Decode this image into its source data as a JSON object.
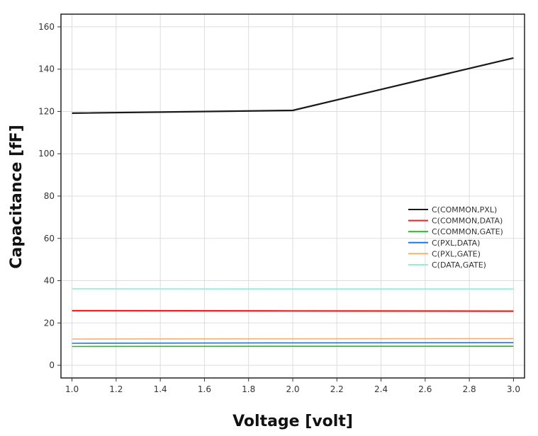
{
  "chart_data": {
    "type": "line",
    "title": "",
    "xlabel": "Voltage [volt]",
    "ylabel": "Capacitance [fF]",
    "xlim": [
      0.95,
      3.05
    ],
    "ylim": [
      -6,
      166
    ],
    "x_ticks": [
      1.0,
      1.2,
      1.4,
      1.6,
      1.8,
      2.0,
      2.2,
      2.4,
      2.6,
      2.8,
      3.0
    ],
    "x_tick_labels": [
      "1.0",
      "1.2",
      "1.4",
      "1.6",
      "1.8",
      "2.0",
      "2.2",
      "2.4",
      "2.6",
      "2.8",
      "3.0"
    ],
    "y_ticks": [
      0,
      20,
      40,
      60,
      80,
      100,
      120,
      140,
      160
    ],
    "y_tick_labels": [
      "0",
      "20",
      "40",
      "60",
      "80",
      "100",
      "120",
      "140",
      "160"
    ],
    "grid": true,
    "legend_position": "right",
    "x": [
      1.0,
      2.0,
      3.0
    ],
    "series": [
      {
        "name": "C(COMMON,PXL)",
        "color": "#1a1a1a",
        "values": [
          119.2,
          120.5,
          145.3
        ]
      },
      {
        "name": "C(COMMON,DATA)",
        "color": "#ee2222",
        "values": [
          25.8,
          25.7,
          25.6
        ]
      },
      {
        "name": "C(COMMON,GATE)",
        "color": "#22bb22",
        "values": [
          8.9,
          9.0,
          9.0
        ]
      },
      {
        "name": "C(PXL,DATA)",
        "color": "#2277dd",
        "values": [
          10.4,
          10.6,
          10.7
        ]
      },
      {
        "name": "C(PXL,GATE)",
        "color": "#f5b070",
        "values": [
          12.4,
          12.5,
          12.6
        ]
      },
      {
        "name": "C(DATA,GATE)",
        "color": "#88f5d8",
        "values": [
          36.2,
          36.1,
          36.1
        ]
      }
    ]
  }
}
